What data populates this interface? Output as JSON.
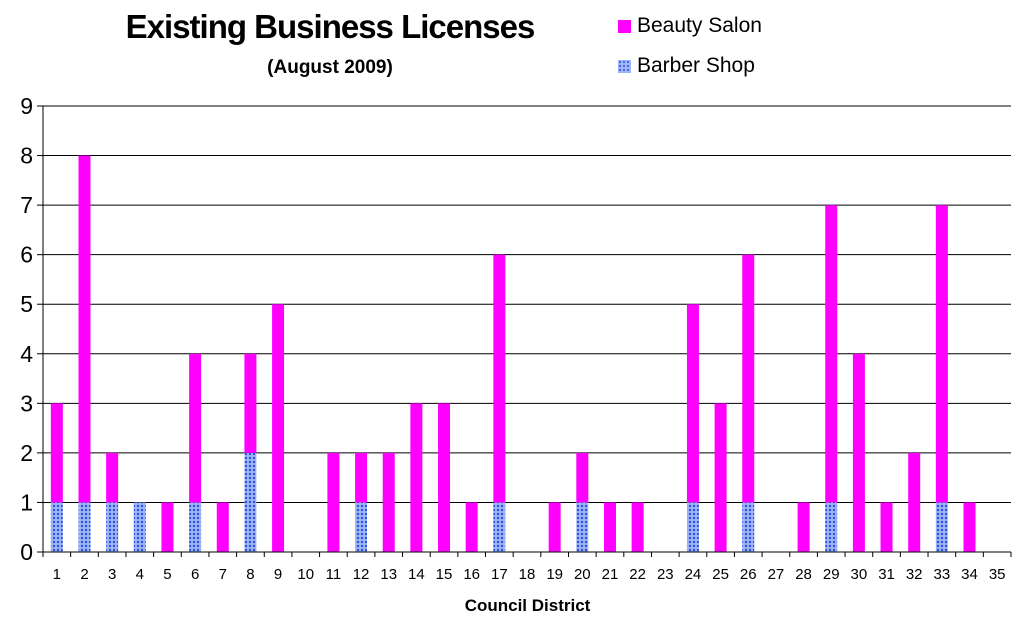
{
  "chart_data": {
    "type": "bar",
    "stacked": true,
    "title": "Existing Business Licenses",
    "subtitle": "(August 2009)",
    "xlabel": "Council District",
    "ylabel": "",
    "ylim": [
      0,
      9
    ],
    "yticks": [
      0,
      1,
      2,
      3,
      4,
      5,
      6,
      7,
      8,
      9
    ],
    "grid": true,
    "legend_position": "top-right",
    "categories": [
      "1",
      "2",
      "3",
      "4",
      "5",
      "6",
      "7",
      "8",
      "9",
      "10",
      "11",
      "12",
      "13",
      "14",
      "15",
      "16",
      "17",
      "18",
      "19",
      "20",
      "21",
      "22",
      "23",
      "24",
      "25",
      "26",
      "27",
      "28",
      "29",
      "30",
      "31",
      "32",
      "33",
      "34",
      "35"
    ],
    "series": [
      {
        "name": "Barber Shop",
        "color": "#4a6cf0",
        "pattern": "dots",
        "values": [
          1,
          1,
          1,
          1,
          0,
          1,
          0,
          2,
          0,
          0,
          0,
          1,
          0,
          0,
          0,
          0,
          1,
          0,
          0,
          1,
          0,
          0,
          0,
          1,
          0,
          1,
          0,
          0,
          1,
          0,
          0,
          0,
          1,
          0,
          0
        ]
      },
      {
        "name": "Beauty Salon",
        "color": "#ff00ff",
        "pattern": "solid",
        "values": [
          2,
          7,
          1,
          0,
          1,
          3,
          1,
          2,
          5,
          0,
          2,
          1,
          2,
          3,
          3,
          1,
          5,
          0,
          1,
          1,
          1,
          1,
          0,
          4,
          3,
          5,
          0,
          1,
          6,
          4,
          1,
          2,
          6,
          1,
          0
        ]
      }
    ]
  }
}
